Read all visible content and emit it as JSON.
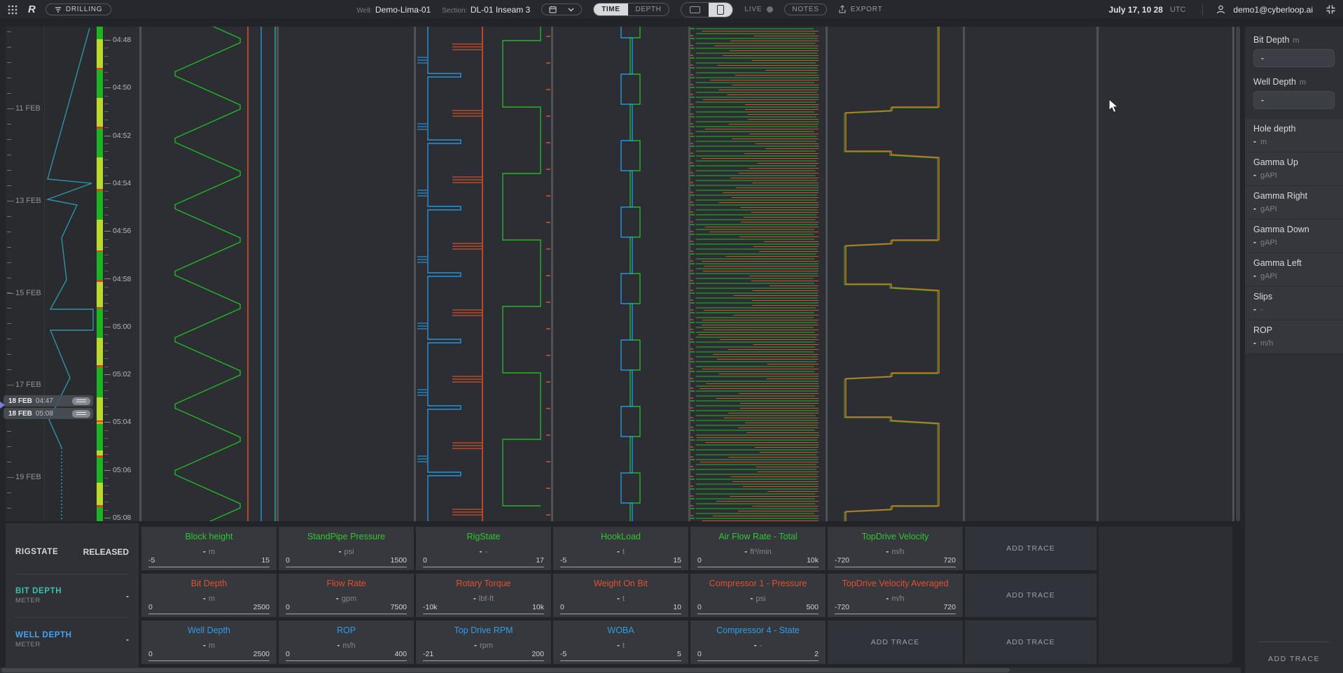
{
  "topbar": {
    "logo": "R",
    "filter_button": "DRILLING",
    "well_label": "Well:",
    "well_value": "Demo-Lima-01",
    "section_label": "Section:",
    "section_value": "DL-01 Inseam 3",
    "toggle_time": "TIME",
    "toggle_depth": "DEPTH",
    "live_label": "LIVE",
    "notes_button": "NOTES",
    "export_button": "EXPORT",
    "clock": "July 17, 10 28",
    "timezone": "UTC",
    "user_email": "demo1@cyberloop.ai"
  },
  "overview": {
    "dates": [
      "11 FEB",
      "13 FEB",
      "15 FEB",
      "17 FEB",
      "19 FEB"
    ],
    "selection": {
      "start_date": "18 FEB",
      "start_time": "04:47",
      "end_date": "18 FEB",
      "end_time": "05:08"
    },
    "strip_segments": [
      [
        20,
        "g"
      ],
      [
        46,
        "y"
      ],
      [
        3,
        "r"
      ],
      [
        44,
        "g"
      ],
      [
        46,
        "y"
      ],
      [
        3,
        "r"
      ],
      [
        46,
        "g"
      ],
      [
        50,
        "y"
      ],
      [
        3,
        "r"
      ],
      [
        46,
        "g"
      ],
      [
        48,
        "y"
      ],
      [
        3,
        "r"
      ],
      [
        44,
        "g"
      ],
      [
        3,
        "r"
      ],
      [
        40,
        "y"
      ],
      [
        3,
        "r"
      ],
      [
        46,
        "g"
      ],
      [
        44,
        "y"
      ],
      [
        3,
        "r"
      ],
      [
        48,
        "g"
      ],
      [
        36,
        "y"
      ],
      [
        2,
        "r"
      ],
      [
        4,
        "o"
      ],
      [
        42,
        "g"
      ],
      [
        8,
        "y"
      ],
      [
        3,
        "r"
      ],
      [
        40,
        "g"
      ],
      [
        36,
        "y"
      ],
      [
        3,
        "r"
      ],
      [
        22,
        "g"
      ]
    ]
  },
  "time_axis": [
    "04:48",
    "04:50",
    "04:52",
    "04:54",
    "04:56",
    "04:58",
    "05:00",
    "05:02",
    "05:04",
    "05:06",
    "05:08"
  ],
  "info_panel": {
    "rigstate_label": "RIGSTATE",
    "rigstate_value": "RELEASED",
    "meters": [
      {
        "name": "BIT DEPTH",
        "sub": "METER",
        "value": "-",
        "color": "#3fbfae"
      },
      {
        "name": "WELL DEPTH",
        "sub": "METER",
        "value": "-",
        "color": "#42a5f5"
      }
    ]
  },
  "add_trace_label": "ADD TRACE",
  "tracks": [
    {
      "viz": "blockheight",
      "rows": [
        {
          "label": "Block height",
          "unit": "m",
          "value": "-",
          "min": "-5",
          "max": "15",
          "color": "green"
        },
        {
          "label": "Bit Depth",
          "unit": "m",
          "value": "-",
          "min": "0",
          "max": "2500",
          "color": "orange"
        },
        {
          "label": "Well Depth",
          "unit": "m",
          "value": "-",
          "min": "0",
          "max": "2500",
          "color": "blue"
        }
      ]
    },
    {
      "viz": "empty",
      "rows": [
        {
          "label": "StandPipe Pressure",
          "unit": "psi",
          "value": "-",
          "min": "0",
          "max": "1500",
          "color": "green"
        },
        {
          "label": "Flow Rate",
          "unit": "gpm",
          "value": "-",
          "min": "0",
          "max": "7500",
          "color": "orange"
        },
        {
          "label": "ROP",
          "unit": "m/h",
          "value": "-",
          "min": "0",
          "max": "400",
          "color": "blue"
        }
      ]
    },
    {
      "viz": "rigstate",
      "rows": [
        {
          "label": "RigState",
          "unit": "-",
          "value": "-",
          "min": "0",
          "max": "17",
          "color": "green"
        },
        {
          "label": "Rotary Torque",
          "unit": "lbf-ft",
          "value": "-",
          "min": "-10k",
          "max": "10k",
          "color": "orange"
        },
        {
          "label": "Top Drive RPM",
          "unit": "rpm",
          "value": "-",
          "min": "-21",
          "max": "200",
          "color": "blue"
        }
      ]
    },
    {
      "viz": "hookload",
      "rows": [
        {
          "label": "HookLoad",
          "unit": "t",
          "value": "-",
          "min": "-5",
          "max": "15",
          "color": "green"
        },
        {
          "label": "Weight On Bit",
          "unit": "t",
          "value": "-",
          "min": "0",
          "max": "10",
          "color": "orange"
        },
        {
          "label": "WOBA",
          "unit": "t",
          "value": "-",
          "min": "-5",
          "max": "5",
          "color": "blue"
        }
      ]
    },
    {
      "viz": "airflow",
      "rows": [
        {
          "label": "Air Flow Rate - Total",
          "unit": "ft³/min",
          "value": "-",
          "min": "0",
          "max": "10k",
          "color": "green"
        },
        {
          "label": "Compressor 1 - Pressure",
          "unit": "psi",
          "value": "-",
          "min": "0",
          "max": "500",
          "color": "orange"
        },
        {
          "label": "Compressor 4 - State",
          "unit": "-",
          "value": "-",
          "min": "0",
          "max": "2",
          "color": "blue"
        }
      ]
    },
    {
      "viz": "topdrive",
      "rows": [
        {
          "label": "TopDrive Velocity",
          "unit": "m/h",
          "value": "-",
          "min": "-720",
          "max": "720",
          "color": "green"
        },
        {
          "label": "TopDrive Velocity Averaged",
          "unit": "m/h",
          "value": "-",
          "min": "-720",
          "max": "720",
          "color": "orange"
        },
        {
          "add": true
        }
      ]
    },
    {
      "viz": "empty",
      "rows": [
        {
          "add": true
        },
        {
          "add": true
        },
        {
          "add": true
        }
      ]
    },
    {
      "viz": "empty",
      "ghost": true,
      "rows": []
    }
  ],
  "sidebar": {
    "inputs": [
      {
        "label": "Bit Depth",
        "unit": "m",
        "value": "-"
      },
      {
        "label": "Well Depth",
        "unit": "m",
        "value": "-"
      }
    ],
    "cards": [
      {
        "label": "Hole depth",
        "value": "-",
        "unit": "m"
      },
      {
        "label": "Gamma Up",
        "value": "-",
        "unit": "gAPI"
      },
      {
        "label": "Gamma Right",
        "value": "-",
        "unit": "gAPI"
      },
      {
        "label": "Gamma Down",
        "value": "-",
        "unit": "gAPI"
      },
      {
        "label": "Gamma Left",
        "value": "-",
        "unit": "gAPI"
      },
      {
        "label": "Slips",
        "value": "-",
        "unit": "-"
      },
      {
        "label": "ROP",
        "value": "-",
        "unit": "m/h"
      }
    ],
    "add_trace_label": "ADD TRACE"
  },
  "colors": {
    "green": "#2ec72e",
    "orange": "#e0512d",
    "blue": "#2b9fe8",
    "trace_green": "#1fb825",
    "trace_orange": "#d4502a",
    "trace_blue": "#2496dc",
    "trace_teal": "#2ab5a0",
    "trace_topdrive": "#d9731f",
    "strip_green": "#1eb320",
    "strip_yellow": "#b9d92b",
    "strip_red": "#e23d2c",
    "strip_amber": "#e0a21e"
  }
}
